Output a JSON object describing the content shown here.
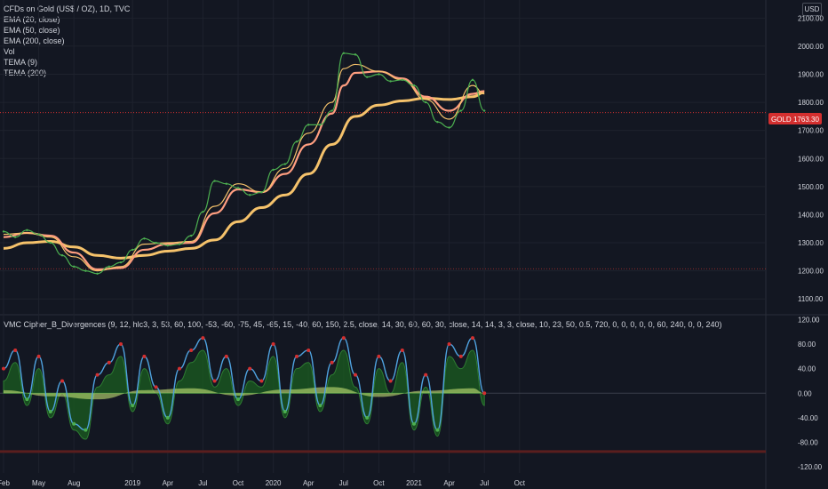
{
  "legend": {
    "title": "CFDs on Gold (US$ / OZ), 1D, TVC",
    "studies": [
      "EMA (20, close)",
      "EMA (50, close)",
      "EMA (200, close)",
      "Vol",
      "TEMA (9)",
      "TEMA (200)"
    ]
  },
  "indicator_title": "VMC Cipher_B_Divergences (9, 12, hlc3, 3, 53, 60, 100, -53, -60, -75, 45, -65, 15, -40, 60, 150, 2.5, close, 14, 30, 60, 60, 30, close, 14, 14, 3, 3, close, 10, 23, 50, 0.5, 720, 0, 0, 0, 0, 0, 60, 240, 0, 0, 240)",
  "currency": "USD",
  "last_price": {
    "symbol": "GOLD",
    "value": "1763.30",
    "raw": 1763.3
  },
  "colors": {
    "background": "#131722",
    "candle_up": "#26a69a",
    "price": "#4caf50",
    "ema20": "#f5c26b",
    "ema50": "#ff9e80",
    "ema200": "#d32f2f",
    "wave1": "#4fa3e0",
    "wave2": "#1b5e20",
    "money_flow": "#c6e377",
    "label": "#d32f2f"
  },
  "chart_data": [
    {
      "type": "line",
      "title": "CFDs on Gold (US$ / OZ), 1D, TVC",
      "ylim": [
        1050,
        2120
      ],
      "y_ticks": [
        "2100.00",
        "2000.00",
        "1900.00",
        "1800.00",
        "1700.00",
        "1600.00",
        "1500.00",
        "1400.00",
        "1300.00",
        "1200.00",
        "1100.00"
      ],
      "x_ticks": [
        "Feb",
        "May",
        "Aug",
        "2019",
        "Apr",
        "Jul",
        "Oct",
        "2020",
        "Apr",
        "Jul",
        "Oct",
        "2021",
        "Apr",
        "Jul",
        "Oct"
      ],
      "x_tick_months": [
        0,
        3,
        6,
        11,
        14,
        17,
        20,
        23,
        26,
        29,
        32,
        35,
        38,
        41,
        44
      ],
      "reference_line": 1207,
      "series": [
        {
          "name": "Price",
          "x": [
            0,
            1,
            2,
            3,
            4,
            5,
            6,
            7,
            8,
            9,
            10,
            11,
            12,
            13,
            14,
            15,
            16,
            17,
            18,
            19,
            20,
            21,
            22,
            23,
            24,
            25,
            26,
            27,
            28,
            29,
            30,
            31,
            32,
            33,
            34,
            35,
            36,
            37,
            38,
            39,
            40,
            41
          ],
          "values": [
            1340,
            1320,
            1345,
            1330,
            1300,
            1255,
            1215,
            1200,
            1190,
            1215,
            1230,
            1275,
            1315,
            1300,
            1290,
            1295,
            1325,
            1410,
            1520,
            1510,
            1495,
            1470,
            1480,
            1560,
            1580,
            1660,
            1720,
            1720,
            1770,
            1975,
            1970,
            1890,
            1900,
            1875,
            1880,
            1860,
            1800,
            1730,
            1710,
            1770,
            1880,
            1770
          ]
        },
        {
          "name": "EMA (20, close)",
          "x": [
            0,
            2,
            4,
            6,
            8,
            10,
            12,
            14,
            16,
            18,
            20,
            22,
            24,
            26,
            28,
            29,
            30,
            32,
            34,
            36,
            38,
            40,
            41
          ],
          "values": [
            1330,
            1335,
            1320,
            1250,
            1200,
            1215,
            1295,
            1300,
            1305,
            1430,
            1510,
            1480,
            1565,
            1690,
            1800,
            1920,
            1935,
            1910,
            1880,
            1810,
            1740,
            1860,
            1830
          ]
        },
        {
          "name": "EMA (50, close)",
          "x": [
            0,
            2,
            4,
            6,
            8,
            10,
            12,
            14,
            16,
            18,
            20,
            22,
            24,
            26,
            28,
            29,
            30,
            32,
            34,
            36,
            38,
            40,
            41
          ],
          "values": [
            1320,
            1335,
            1325,
            1265,
            1205,
            1210,
            1275,
            1295,
            1300,
            1405,
            1490,
            1480,
            1545,
            1650,
            1760,
            1860,
            1905,
            1910,
            1885,
            1820,
            1770,
            1830,
            1840
          ]
        },
        {
          "name": "EMA (200, close)",
          "x": [
            0,
            2,
            4,
            6,
            8,
            10,
            12,
            14,
            16,
            18,
            20,
            22,
            24,
            26,
            28,
            30,
            32,
            34,
            36,
            38,
            40,
            41
          ],
          "values": [
            1280,
            1300,
            1305,
            1285,
            1255,
            1245,
            1255,
            1270,
            1280,
            1310,
            1375,
            1425,
            1470,
            1545,
            1650,
            1750,
            1790,
            1805,
            1815,
            1810,
            1820,
            1835
          ]
        }
      ]
    },
    {
      "type": "line",
      "title": "VMC Cipher_B_Divergences",
      "ylim": [
        -130,
        125
      ],
      "y_ticks": [
        "120.00",
        "80.00",
        "40.00",
        "0.00",
        "-40.00",
        "-80.00",
        "-120.00"
      ],
      "series": [
        {
          "name": "Wave 1",
          "x": [
            0,
            1,
            2,
            3,
            4,
            5,
            6,
            7,
            8,
            9,
            10,
            11,
            12,
            13,
            14,
            15,
            16,
            17,
            18,
            19,
            20,
            21,
            22,
            23,
            24,
            25,
            26,
            27,
            28,
            29,
            30,
            31,
            32,
            33,
            34,
            35,
            36,
            37,
            38,
            39,
            40,
            41
          ],
          "values": [
            40,
            70,
            -10,
            60,
            -30,
            20,
            -50,
            -60,
            30,
            50,
            80,
            -20,
            60,
            10,
            -40,
            40,
            70,
            90,
            20,
            60,
            -10,
            40,
            20,
            80,
            -30,
            60,
            70,
            -20,
            50,
            90,
            30,
            -40,
            60,
            20,
            70,
            -50,
            30,
            -60,
            80,
            60,
            90,
            0
          ]
        },
        {
          "name": "Wave 2",
          "x": [
            0,
            1,
            2,
            3,
            4,
            5,
            6,
            7,
            8,
            9,
            10,
            11,
            12,
            13,
            14,
            15,
            16,
            17,
            18,
            19,
            20,
            21,
            22,
            23,
            24,
            25,
            26,
            27,
            28,
            29,
            30,
            31,
            32,
            33,
            34,
            35,
            36,
            37,
            38,
            39,
            40,
            41
          ],
          "values": [
            20,
            50,
            -20,
            40,
            -40,
            0,
            -60,
            -75,
            10,
            30,
            60,
            -30,
            40,
            0,
            -50,
            20,
            50,
            70,
            10,
            40,
            -20,
            20,
            10,
            60,
            -40,
            40,
            50,
            -30,
            30,
            70,
            10,
            -50,
            40,
            0,
            50,
            -60,
            10,
            -70,
            60,
            40,
            70,
            -20
          ]
        },
        {
          "name": "Money Flow",
          "x": [
            0,
            4,
            8,
            12,
            16,
            20,
            24,
            28,
            32,
            36,
            40,
            41
          ],
          "values": [
            5,
            -5,
            -10,
            5,
            8,
            -4,
            6,
            10,
            -6,
            4,
            8,
            0
          ]
        }
      ]
    }
  ]
}
